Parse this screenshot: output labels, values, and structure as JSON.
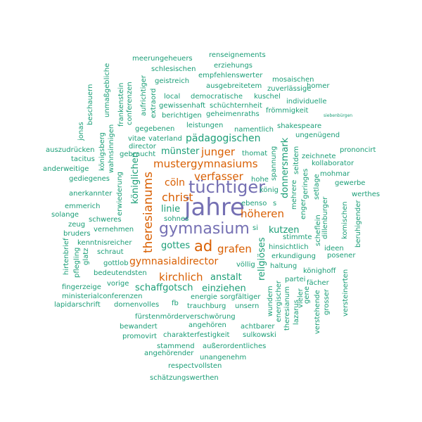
{
  "colors": {
    "teal": "#1b9e77",
    "orange": "#d95f02",
    "purple": "#7570b3"
  },
  "words": [
    {
      "id": "jahre",
      "text": "jahre",
      "color": "purple"
    },
    {
      "id": "tuechtiger",
      "text": "tüchtiger",
      "color": "purple"
    },
    {
      "id": "gymnasium",
      "text": "gymnasium",
      "color": "purple"
    },
    {
      "id": "ad",
      "text": "ad",
      "color": "orange"
    },
    {
      "id": "theresianums",
      "text": "theresianums",
      "color": "orange"
    },
    {
      "id": "christ",
      "text": "christ",
      "color": "orange"
    },
    {
      "id": "mustergymnasiums",
      "text": "mustergymnasiums",
      "color": "orange"
    },
    {
      "id": "verfasser",
      "text": "verfasser",
      "color": "orange"
    },
    {
      "id": "junger",
      "text": "junger",
      "color": "orange"
    },
    {
      "id": "hoeheren",
      "text": "höheren",
      "color": "orange"
    },
    {
      "id": "grafen",
      "text": "grafen",
      "color": "orange"
    },
    {
      "id": "kirchlich",
      "text": "kirchlich",
      "color": "orange"
    },
    {
      "id": "gymnasialdirector",
      "text": "gymnasialdirector",
      "color": "orange"
    },
    {
      "id": "coeln",
      "text": "cöln",
      "color": "orange"
    },
    {
      "id": "paedagogischen",
      "text": "pädagogischen",
      "color": "teal"
    },
    {
      "id": "muenster",
      "text": "münster",
      "color": "teal"
    },
    {
      "id": "koeniglichen",
      "text": "königlichen",
      "color": "teal"
    },
    {
      "id": "linie",
      "text": "linie",
      "color": "teal"
    },
    {
      "id": "gottes",
      "text": "gottes",
      "color": "teal"
    },
    {
      "id": "anstalt",
      "text": "anstalt",
      "color": "teal"
    },
    {
      "id": "schaffgotsch",
      "text": "schaffgotsch",
      "color": "teal"
    },
    {
      "id": "einziehen",
      "text": "einziehen",
      "color": "teal"
    },
    {
      "id": "kutzen",
      "text": "kutzen",
      "color": "teal"
    },
    {
      "id": "religioeses",
      "text": "religiöses",
      "color": "teal"
    },
    {
      "id": "donnersmark",
      "text": "donnersmark",
      "color": "teal"
    },
    {
      "id": "meerungeheuers",
      "text": "meerungeheuers",
      "color": "teal"
    },
    {
      "id": "renseignements",
      "text": "renseignements",
      "color": "teal"
    },
    {
      "id": "erziehungs",
      "text": "erziehungs",
      "color": "teal"
    },
    {
      "id": "schlesischen",
      "text": "schlesischen",
      "color": "teal"
    },
    {
      "id": "empfehlenswerter",
      "text": "empfehlenswerter",
      "color": "teal"
    },
    {
      "id": "mosaischen",
      "text": "mosaischen",
      "color": "teal"
    },
    {
      "id": "geistreich",
      "text": "geistreich",
      "color": "teal"
    },
    {
      "id": "ausgebreitetem",
      "text": "ausgebreitetem",
      "color": "teal"
    },
    {
      "id": "zuverlaessige",
      "text": "zuverlässige",
      "color": "teal"
    },
    {
      "id": "homer",
      "text": "homer",
      "color": "teal"
    },
    {
      "id": "local",
      "text": "local",
      "color": "teal"
    },
    {
      "id": "democratische",
      "text": "democratische",
      "color": "teal"
    },
    {
      "id": "kuschel",
      "text": "kuschel",
      "color": "teal"
    },
    {
      "id": "individuelle",
      "text": "individuelle",
      "color": "teal"
    },
    {
      "id": "gewissenhaft",
      "text": "gewissenhaft",
      "color": "teal"
    },
    {
      "id": "schuechternheit",
      "text": "schüchternheit",
      "color": "teal"
    },
    {
      "id": "froemmigkeit",
      "text": "frömmigkeit",
      "color": "teal"
    },
    {
      "id": "berichtigen",
      "text": "berichtigen",
      "color": "teal"
    },
    {
      "id": "geheimenraths",
      "text": "geheimenraths",
      "color": "teal"
    },
    {
      "id": "siebenbuergen",
      "text": "siebenbürgen",
      "color": "teal"
    },
    {
      "id": "gegebenen",
      "text": "gegebenen",
      "color": "teal"
    },
    {
      "id": "leistungen",
      "text": "leistungen",
      "color": "teal"
    },
    {
      "id": "namentlich",
      "text": "namentlich",
      "color": "teal"
    },
    {
      "id": "shakespeare",
      "text": "shakespeare",
      "color": "teal"
    },
    {
      "id": "ungenuegend",
      "text": "ungenügend",
      "color": "teal"
    },
    {
      "id": "vitae",
      "text": "vitae",
      "color": "teal"
    },
    {
      "id": "vaterland",
      "text": "vaterland",
      "color": "teal"
    },
    {
      "id": "director",
      "text": "director",
      "color": "teal"
    },
    {
      "id": "auszudruecken",
      "text": "auszudrücken",
      "color": "teal"
    },
    {
      "id": "gebraucht",
      "text": "gebraucht",
      "color": "teal"
    },
    {
      "id": "thomat",
      "text": "thomat",
      "color": "teal"
    },
    {
      "id": "zeichnete",
      "text": "zeichnete",
      "color": "teal"
    },
    {
      "id": "prononcirt",
      "text": "prononcirt",
      "color": "teal"
    },
    {
      "id": "tacitus",
      "text": "tacitus",
      "color": "teal"
    },
    {
      "id": "kollaborator",
      "text": "kollaborator",
      "color": "teal"
    },
    {
      "id": "anderweitige",
      "text": "anderweitige",
      "color": "teal"
    },
    {
      "id": "mohmar",
      "text": "mohmar",
      "color": "teal"
    },
    {
      "id": "gediegenes",
      "text": "gediegenes",
      "color": "teal"
    },
    {
      "id": "hohe",
      "text": "hohe",
      "color": "teal"
    },
    {
      "id": "gewerbe",
      "text": "gewerbe",
      "color": "teal"
    },
    {
      "id": "koenig",
      "text": "könig",
      "color": "teal"
    },
    {
      "id": "anerkannter",
      "text": "anerkannter",
      "color": "teal"
    },
    {
      "id": "werthes",
      "text": "werthes",
      "color": "teal"
    },
    {
      "id": "emmerich",
      "text": "emmerich",
      "color": "teal"
    },
    {
      "id": "ebenso",
      "text": "ebenso",
      "color": "teal"
    },
    {
      "id": "s",
      "text": "s",
      "color": "teal"
    },
    {
      "id": "solange",
      "text": "solange",
      "color": "teal"
    },
    {
      "id": "zeug",
      "text": "zeug",
      "color": "teal"
    },
    {
      "id": "sohnes",
      "text": "sohnes",
      "color": "teal"
    },
    {
      "id": "bruders",
      "text": "bruders",
      "color": "teal"
    },
    {
      "id": "schweres",
      "text": "schweres",
      "color": "teal"
    },
    {
      "id": "vernehmen",
      "text": "vernehmen",
      "color": "teal"
    },
    {
      "id": "si",
      "text": "si",
      "color": "teal"
    },
    {
      "id": "kenntnisreicher",
      "text": "kenntnisreicher",
      "color": "teal"
    },
    {
      "id": "ideen",
      "text": "ideen",
      "color": "teal"
    },
    {
      "id": "schraut",
      "text": "schraut",
      "color": "teal"
    },
    {
      "id": "hinsichtlich",
      "text": "hinsichtlich",
      "color": "teal"
    },
    {
      "id": "erkundigung",
      "text": "erkundigung",
      "color": "teal"
    },
    {
      "id": "posener",
      "text": "posener",
      "color": "teal"
    },
    {
      "id": "gottlob",
      "text": "gottlob",
      "color": "teal"
    },
    {
      "id": "voellig",
      "text": "völlig",
      "color": "teal"
    },
    {
      "id": "haltung",
      "text": "haltung",
      "color": "teal"
    },
    {
      "id": "bedeutendsten",
      "text": "bedeutendsten",
      "color": "teal"
    },
    {
      "id": "koenighoff",
      "text": "könighoff",
      "color": "teal"
    },
    {
      "id": "vorige",
      "text": "vorige",
      "color": "teal"
    },
    {
      "id": "fingerzeige",
      "text": "fingerzeige",
      "color": "teal"
    },
    {
      "id": "partei",
      "text": "partei",
      "color": "teal"
    },
    {
      "id": "faecher",
      "text": "fächer",
      "color": "teal"
    },
    {
      "id": "ministerialconferenzen",
      "text": "ministerialconferenzen",
      "color": "teal"
    },
    {
      "id": "energie",
      "text": "energie",
      "color": "teal"
    },
    {
      "id": "sorgfaeltiger",
      "text": "sorgfältiger",
      "color": "teal"
    },
    {
      "id": "lapidarschrift",
      "text": "lapidarschrift",
      "color": "teal"
    },
    {
      "id": "dornenvolles",
      "text": "dornenvolles",
      "color": "teal"
    },
    {
      "id": "fb",
      "text": "fb",
      "color": "teal"
    },
    {
      "id": "trauchburg",
      "text": "trauchburg",
      "color": "teal"
    },
    {
      "id": "unsern",
      "text": "unsern",
      "color": "teal"
    },
    {
      "id": "fuerstenmoerderverschwoerung",
      "text": "fürstenmörderverschwörung",
      "color": "teal"
    },
    {
      "id": "bewandert",
      "text": "bewandert",
      "color": "teal"
    },
    {
      "id": "angehoeren",
      "text": "angehören",
      "color": "teal"
    },
    {
      "id": "achtbarer",
      "text": "achtbarer",
      "color": "teal"
    },
    {
      "id": "promovirt",
      "text": "promovirt",
      "color": "teal"
    },
    {
      "id": "charakterfestigkeit",
      "text": "charakterfestigkeit",
      "color": "teal"
    },
    {
      "id": "sulkowski",
      "text": "sulkowski",
      "color": "teal"
    },
    {
      "id": "stammend",
      "text": "stammend",
      "color": "teal"
    },
    {
      "id": "ausserordentliches",
      "text": "außerordentliches",
      "color": "teal"
    },
    {
      "id": "angehoerender",
      "text": "angehörender",
      "color": "teal"
    },
    {
      "id": "unangenehm",
      "text": "unangenehm",
      "color": "teal"
    },
    {
      "id": "respectvollsten",
      "text": "respectvollsten",
      "color": "teal"
    },
    {
      "id": "schaetzungswerthen",
      "text": "schätzungswerthen",
      "color": "teal"
    },
    {
      "id": "stimmte",
      "text": "stimmte",
      "color": "teal"
    },
    {
      "id": "jonas",
      "text": "jonas",
      "color": "teal"
    },
    {
      "id": "beschauern",
      "text": "beschauern",
      "color": "teal"
    },
    {
      "id": "unmassgebliche",
      "text": "unmaßgebliche",
      "color": "teal"
    },
    {
      "id": "koenigsberg",
      "text": "königsberg",
      "color": "teal"
    },
    {
      "id": "wahnsinnigen",
      "text": "wahnsinnigen",
      "color": "teal"
    },
    {
      "id": "frankenstein",
      "text": "frankenstein",
      "color": "teal"
    },
    {
      "id": "conferenzen",
      "text": "conferenzen",
      "color": "teal"
    },
    {
      "id": "aufrichtiger",
      "text": "aufrichtiger",
      "color": "teal"
    },
    {
      "id": "extraord",
      "text": "extraord",
      "color": "teal"
    },
    {
      "id": "erwiederung",
      "text": "erwiederung",
      "color": "teal"
    },
    {
      "id": "hirtenbrief",
      "text": "hirtenbrief",
      "color": "teal"
    },
    {
      "id": "pflegling",
      "text": "pflegling",
      "color": "teal"
    },
    {
      "id": "glatz",
      "text": "glatz",
      "color": "teal"
    },
    {
      "id": "spannung",
      "text": "spannung",
      "color": "teal"
    },
    {
      "id": "seitdem",
      "text": "seitdem",
      "color": "teal"
    },
    {
      "id": "mehrere",
      "text": "mehrere",
      "color": "teal"
    },
    {
      "id": "enger",
      "text": "enger",
      "color": "teal"
    },
    {
      "id": "geringes",
      "text": "geringes",
      "color": "teal"
    },
    {
      "id": "setlage",
      "text": "setlage",
      "color": "teal"
    },
    {
      "id": "dillenburger",
      "text": "dillenburger",
      "color": "teal"
    },
    {
      "id": "scheflein",
      "text": "scheflein",
      "color": "teal"
    },
    {
      "id": "komischen",
      "text": "komischen",
      "color": "teal"
    },
    {
      "id": "beruhigender",
      "text": "beruhigender",
      "color": "teal"
    },
    {
      "id": "wundern",
      "text": "wundern",
      "color": "teal"
    },
    {
      "id": "energischer",
      "text": "energischer",
      "color": "teal"
    },
    {
      "id": "theresianum",
      "text": "theresianum",
      "color": "teal"
    },
    {
      "id": "lazarus",
      "text": "lazarus",
      "color": "teal"
    },
    {
      "id": "vieler",
      "text": "vieler",
      "color": "teal"
    },
    {
      "id": "gene",
      "text": "gene",
      "color": "teal"
    },
    {
      "id": "grosser",
      "text": "grosser",
      "color": "teal"
    },
    {
      "id": "verstehende",
      "text": "verstehende",
      "color": "teal"
    },
    {
      "id": "versteinerten",
      "text": "versteinerten",
      "color": "teal"
    }
  ]
}
